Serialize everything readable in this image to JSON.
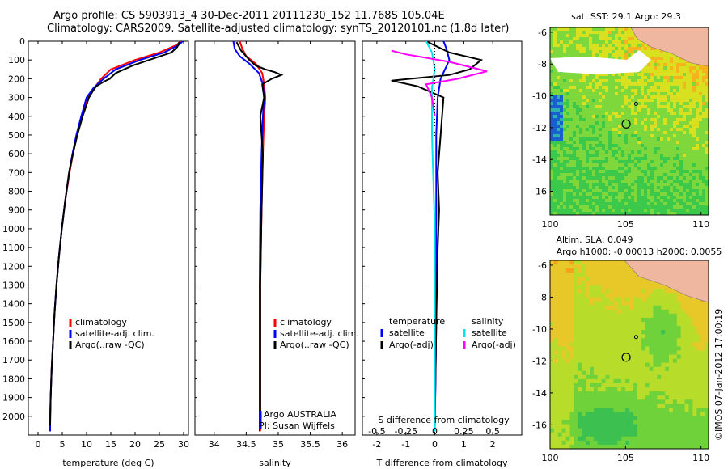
{
  "header": {
    "line1": "Argo profile: CS 5903913_4 30-Dec-2011 20111230_152 11.768S 105.04E",
    "line2": "Climatology: CARS2009. Satellite-adjusted climatology: synTS_20120101.nc (1.8d later)"
  },
  "side_label": "©IMOS 07-Jan-2012 17:00:19",
  "colors": {
    "climatology": "#ff0000",
    "satellite": "#0000ff",
    "argo": "#000000",
    "sat_s": "#00e5ee",
    "argo_s": "#ff00ff"
  },
  "chart_data": [
    {
      "type": "line",
      "id": "temperature",
      "xlabel": "temperature (deg C)",
      "ylabel": "",
      "xlim": [
        -2,
        31
      ],
      "ylim": [
        2100,
        0
      ],
      "xticks": [
        "0",
        "5",
        "10",
        "15",
        "20",
        "25",
        "30"
      ],
      "yticks": [
        "0",
        "100",
        "200",
        "300",
        "400",
        "500",
        "600",
        "700",
        "800",
        "900",
        "1000",
        "1100",
        "1200",
        "1300",
        "1400",
        "1500",
        "1600",
        "1700",
        "1800",
        "1900",
        "2000"
      ],
      "legend": [
        "climatology",
        "satellite-adj. clim.",
        "Argo(..raw -QC)"
      ],
      "series": [
        {
          "name": "climatology",
          "x": [
            29.4,
            28.6,
            25,
            20,
            15,
            13,
            11.6,
            10.2,
            9,
            8,
            7.2,
            6.5,
            5.6,
            4.9,
            4.3,
            3.8,
            3.4,
            3.1,
            2.8,
            2.6,
            2.5,
            2.5
          ],
          "y": [
            0,
            20,
            60,
            100,
            150,
            200,
            250,
            300,
            400,
            500,
            600,
            700,
            850,
            1000,
            1150,
            1300,
            1450,
            1600,
            1750,
            1900,
            2000,
            2080
          ]
        },
        {
          "name": "satellite-adj. clim.",
          "x": [
            29.8,
            29,
            26,
            21,
            16,
            13.5,
            11.4,
            10,
            8.9,
            7.9,
            7.1,
            6.4,
            5.6,
            4.9,
            4.3,
            3.8,
            3.4,
            3.1,
            2.8,
            2.6,
            2.5,
            2.5
          ],
          "y": [
            0,
            20,
            60,
            100,
            150,
            200,
            250,
            300,
            400,
            500,
            600,
            700,
            850,
            1000,
            1150,
            1300,
            1450,
            1600,
            1750,
            1900,
            2000,
            2080
          ]
        },
        {
          "name": "Argo(..raw -QC)",
          "x": [
            29.1,
            28.7,
            27.5,
            24,
            19.5,
            16,
            14.8,
            13.6,
            12,
            11.2,
            10.5,
            9.2,
            8.1,
            7.2,
            6.4,
            5.6,
            4.9,
            4.3,
            3.8,
            3.4,
            3.1,
            2.8,
            2.6,
            2.5
          ],
          "y": [
            5,
            30,
            60,
            90,
            130,
            170,
            200,
            215,
            240,
            270,
            300,
            400,
            500,
            600,
            700,
            850,
            1000,
            1150,
            1300,
            1450,
            1600,
            1750,
            1900,
            2050
          ]
        }
      ]
    },
    {
      "type": "line",
      "id": "salinity",
      "xlabel": "salinity",
      "xlim": [
        33.7,
        36.2
      ],
      "ylim": [
        2100,
        0
      ],
      "xticks": [
        "34",
        "34.5",
        "35",
        "35.5",
        "36"
      ],
      "legend": [
        "climatology",
        "satellite-adj. clim.",
        "Argo(..raw -QC)"
      ],
      "annotations": [
        "Argo AUSTRALIA",
        "PI: Susan Wijffels"
      ],
      "series": [
        {
          "name": "climatology",
          "x": [
            34.4,
            34.44,
            34.5,
            34.65,
            34.75,
            34.78,
            34.8,
            34.78,
            34.76,
            34.74,
            34.72,
            34.72,
            34.72
          ],
          "y": [
            0,
            40,
            80,
            120,
            170,
            230,
            300,
            400,
            600,
            900,
            1300,
            1700,
            2080
          ]
        },
        {
          "name": "satellite-adj. clim.",
          "x": [
            34.3,
            34.32,
            34.4,
            34.55,
            34.7,
            34.76,
            34.78,
            34.76,
            34.74,
            34.72,
            34.71,
            34.71,
            34.71
          ],
          "y": [
            0,
            40,
            80,
            120,
            170,
            230,
            300,
            400,
            600,
            900,
            1300,
            1700,
            2080
          ]
        },
        {
          "name": "Argo(..raw -QC)",
          "x": [
            34.35,
            34.42,
            34.55,
            34.65,
            34.8,
            34.95,
            35.05,
            34.9,
            34.75,
            34.78,
            34.72,
            34.76,
            34.74,
            34.72,
            34.72
          ],
          "y": [
            5,
            50,
            100,
            130,
            150,
            165,
            180,
            200,
            230,
            300,
            400,
            600,
            900,
            1300,
            2050
          ]
        }
      ]
    },
    {
      "type": "line",
      "id": "difference",
      "xlabel": "T difference from climatology",
      "x2label": "S difference from climatology",
      "xlim": [
        -2.5,
        3
      ],
      "ylim": [
        2100,
        0
      ],
      "xticks": [
        "-2",
        "-1",
        "0",
        "1",
        "2"
      ],
      "x2ticks": [
        "-0.5",
        "-0.25",
        "0",
        "0.25",
        "0.5"
      ],
      "legend_title": [
        "temperature",
        "salinity"
      ],
      "legend": [
        "satellite",
        "Argo(-adj)",
        "satellite",
        "Argo(-adj)"
      ],
      "series": [
        {
          "name": "satellite",
          "x": [
            0.3,
            0.4,
            0.5,
            0.2,
            0.1,
            0.05,
            0.05,
            0.05,
            0.0
          ],
          "y": [
            0,
            40,
            100,
            200,
            300,
            500,
            900,
            1500,
            2080
          ]
        },
        {
          "name": "Argo(-adj)",
          "x": [
            -0.3,
            0.5,
            1.6,
            1.2,
            0.5,
            -1.5,
            -0.6,
            0.3,
            0.2,
            0.1,
            0.15,
            0.1,
            0.05,
            0.0
          ],
          "y": [
            0,
            60,
            100,
            150,
            180,
            210,
            240,
            300,
            500,
            700,
            900,
            1100,
            1500,
            2050
          ]
        },
        {
          "name": "satellite",
          "x": [
            -0.3,
            -0.1,
            0.0,
            -0.1,
            -0.1,
            0.0,
            0.0
          ],
          "y": [
            0,
            60,
            150,
            250,
            500,
            1000,
            2080
          ]
        },
        {
          "name": "Argo(-adj)",
          "x": [
            -1.5,
            -1,
            0.5,
            1.8,
            0.8,
            -0.3,
            -0.1,
            0.0
          ],
          "y": [
            50,
            70,
            110,
            160,
            200,
            230,
            300,
            400
          ]
        }
      ]
    },
    {
      "type": "heatmap",
      "id": "sst-map",
      "title": "sat. SST: 29.1 Argo: 29.3",
      "xlim": [
        100,
        110.5
      ],
      "ylim": [
        -17.5,
        -5.7
      ],
      "xticks": [
        "100",
        "105",
        "110"
      ],
      "yticks": [
        "-6",
        "-8",
        "-10",
        "-12",
        "-14",
        "-16"
      ],
      "point": [
        105.04,
        -11.768
      ]
    },
    {
      "type": "heatmap",
      "id": "sla-map",
      "title": "Altim. SLA: 0.049",
      "subtitle": "Argo h1000: -0.00013 h2000: 0.0055",
      "xlim": [
        100,
        110.5
      ],
      "ylim": [
        -17.5,
        -5.7
      ],
      "xticks": [
        "100",
        "105",
        "110"
      ],
      "yticks": [
        "-6",
        "-8",
        "-10",
        "-12",
        "-14",
        "-16"
      ],
      "point": [
        105.04,
        -11.768
      ]
    }
  ]
}
